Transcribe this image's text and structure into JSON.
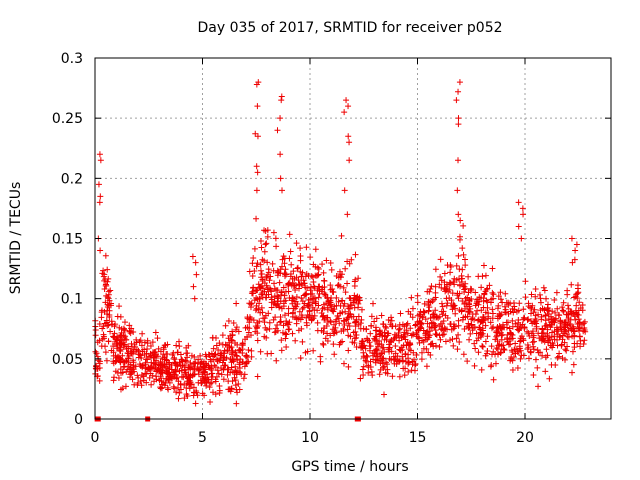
{
  "chart_data": {
    "type": "scatter",
    "title": "Day 035 of 2017, SRMTID for receiver p052",
    "xlabel": "GPS time / hours",
    "ylabel": "SRMTID / TECUs",
    "xlim": [
      0,
      24
    ],
    "ylim": [
      0,
      0.3
    ],
    "x_ticks": [
      0,
      5,
      10,
      15,
      20
    ],
    "x_tick_labels": [
      "0",
      "5",
      "10",
      "15",
      "20"
    ],
    "y_ticks": [
      0,
      0.05,
      0.1,
      0.15,
      0.2,
      0.25,
      0.3
    ],
    "y_tick_labels": [
      "0",
      "0.05",
      "0.1",
      "0.15",
      "0.2",
      "0.25",
      "0.3"
    ],
    "grid": true,
    "marker": "plus",
    "series_color": "#ee0000",
    "profile": [
      [
        0.0,
        0.055,
        0.02
      ],
      [
        0.3,
        0.07,
        0.03
      ],
      [
        0.5,
        0.1,
        0.03
      ],
      [
        0.8,
        0.065,
        0.02
      ],
      [
        1.5,
        0.055,
        0.018
      ],
      [
        2.5,
        0.045,
        0.015
      ],
      [
        3.5,
        0.04,
        0.013
      ],
      [
        4.5,
        0.04,
        0.015
      ],
      [
        5.0,
        0.04,
        0.015
      ],
      [
        5.8,
        0.05,
        0.02
      ],
      [
        6.8,
        0.045,
        0.02
      ],
      [
        7.4,
        0.1,
        0.035
      ],
      [
        8.0,
        0.11,
        0.035
      ],
      [
        9.0,
        0.1,
        0.03
      ],
      [
        10.0,
        0.1,
        0.03
      ],
      [
        11.0,
        0.09,
        0.025
      ],
      [
        12.0,
        0.09,
        0.03
      ],
      [
        12.5,
        0.065,
        0.02
      ],
      [
        13.5,
        0.06,
        0.018
      ],
      [
        14.5,
        0.06,
        0.02
      ],
      [
        15.5,
        0.085,
        0.025
      ],
      [
        16.5,
        0.09,
        0.03
      ],
      [
        17.0,
        0.11,
        0.035
      ],
      [
        17.5,
        0.085,
        0.025
      ],
      [
        18.5,
        0.08,
        0.025
      ],
      [
        19.5,
        0.07,
        0.02
      ],
      [
        20.5,
        0.08,
        0.025
      ],
      [
        21.5,
        0.075,
        0.02
      ],
      [
        22.5,
        0.085,
        0.025
      ],
      [
        22.8,
        0.075,
        0.015
      ]
    ],
    "point_count": 2200,
    "spikes": [
      {
        "x": 0.25,
        "values": [
          0.22,
          0.215,
          0.195,
          0.185,
          0.18,
          0.15,
          0.14
        ]
      },
      {
        "x": 4.6,
        "values": [
          0.135,
          0.13,
          0.12,
          0.11,
          0.1
        ]
      },
      {
        "x": 7.5,
        "values": [
          0.28,
          0.278,
          0.26,
          0.237,
          0.235,
          0.21,
          0.205,
          0.19
        ]
      },
      {
        "x": 8.6,
        "values": [
          0.268,
          0.265,
          0.25,
          0.24,
          0.22,
          0.2,
          0.19
        ]
      },
      {
        "x": 11.7,
        "values": [
          0.265,
          0.26,
          0.255,
          0.235,
          0.23,
          0.215,
          0.19,
          0.17
        ]
      },
      {
        "x": 16.9,
        "values": [
          0.28,
          0.272,
          0.265,
          0.25,
          0.245,
          0.215,
          0.19,
          0.17,
          0.165
        ]
      },
      {
        "x": 19.8,
        "values": [
          0.18,
          0.175,
          0.17,
          0.16,
          0.15
        ]
      },
      {
        "x": 22.3,
        "values": [
          0.15,
          0.145,
          0.14,
          0.13
        ]
      }
    ],
    "zero_points": [
      0.1,
      0.15,
      2.45,
      12.2,
      12.25
    ]
  }
}
